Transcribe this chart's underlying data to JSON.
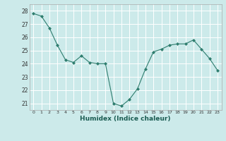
{
  "x": [
    0,
    1,
    2,
    3,
    4,
    5,
    6,
    7,
    8,
    9,
    10,
    11,
    12,
    13,
    14,
    15,
    16,
    17,
    18,
    19,
    20,
    21,
    22,
    23
  ],
  "y": [
    27.8,
    27.6,
    26.7,
    25.4,
    24.3,
    24.1,
    24.6,
    24.1,
    24.0,
    24.0,
    21.0,
    20.8,
    21.3,
    22.1,
    23.6,
    24.9,
    25.1,
    25.4,
    25.5,
    25.5,
    25.8,
    25.1,
    24.4,
    23.5
  ],
  "line_color": "#2e7d6e",
  "marker_color": "#2e7d6e",
  "bg_color": "#cceaea",
  "grid_color": "#ffffff",
  "grid_minor_color": "#e8f8f8",
  "xlabel": "Humidex (Indice chaleur)",
  "ylim": [
    20.5,
    28.5
  ],
  "xlim": [
    -0.5,
    23.5
  ],
  "yticks": [
    21,
    22,
    23,
    24,
    25,
    26,
    27,
    28
  ],
  "xticks": [
    0,
    1,
    2,
    3,
    4,
    5,
    6,
    7,
    8,
    9,
    10,
    11,
    12,
    13,
    14,
    15,
    16,
    17,
    18,
    19,
    20,
    21,
    22,
    23
  ]
}
